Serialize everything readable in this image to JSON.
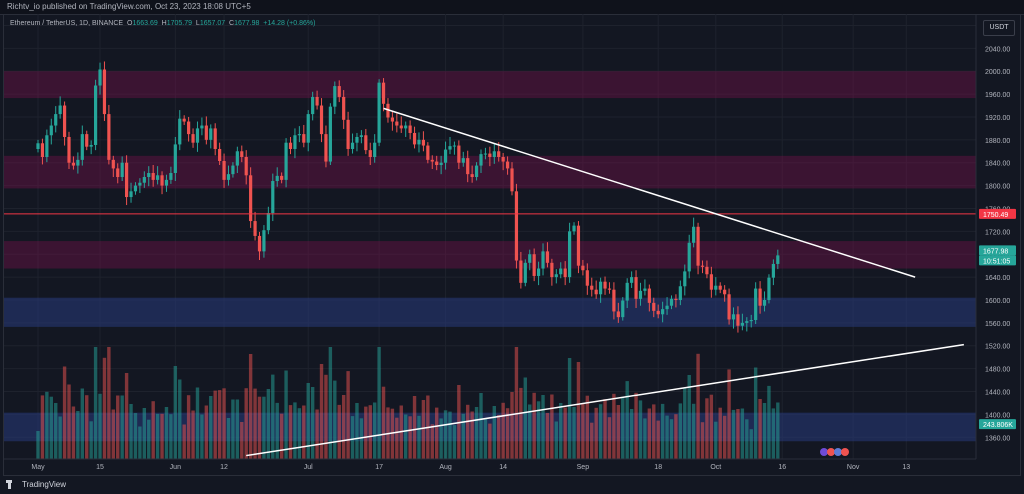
{
  "header": {
    "publisher_line": "Richtv_io published on TradingView.com, Oct 23, 2023 18:08 UTC+5"
  },
  "legend": {
    "symbol": "Ethereum / TetherUS, 1D, BINANCE",
    "o_label": "O",
    "o": "1663.69",
    "h_label": "H",
    "h": "1705.79",
    "l_label": "L",
    "l": "1657.07",
    "c_label": "C",
    "c": "1677.98",
    "change": "+14.28 (+0.86%)"
  },
  "currency": "USDT",
  "footer": {
    "brand": "TradingView"
  },
  "price_tags": {
    "horizontal_level": "1750.49",
    "last_price": "1677.98",
    "countdown": "10:51:05",
    "volume": "243.806K"
  },
  "chart_data": {
    "type": "candlestick",
    "ylim": [
      1322,
      2100
    ],
    "y_ticks": [
      2080,
      2040,
      2000,
      1960,
      1920,
      1880,
      1840,
      1800,
      1760,
      1720,
      1680,
      1640,
      1600,
      1560,
      1520,
      1480,
      1440,
      1400,
      1360
    ],
    "x_ticks": [
      {
        "label": "May",
        "day": 0
      },
      {
        "label": "15",
        "day": 14
      },
      {
        "label": "Jun",
        "day": 31
      },
      {
        "label": "12",
        "day": 42
      },
      {
        "label": "Jul",
        "day": 61
      },
      {
        "label": "17",
        "day": 77
      },
      {
        "label": "Aug",
        "day": 92
      },
      {
        "label": "14",
        "day": 105
      },
      {
        "label": "Sep",
        "day": 123
      },
      {
        "label": "18",
        "day": 140
      },
      {
        "label": "Oct",
        "day": 153
      },
      {
        "label": "16",
        "day": 168
      },
      {
        "label": "Nov",
        "day": 184
      },
      {
        "label": "13",
        "day": 196
      }
    ],
    "zones": [
      {
        "from": 1953,
        "to": 2000,
        "kind": "resistance"
      },
      {
        "from": 1795,
        "to": 1852,
        "kind": "resistance"
      },
      {
        "from": 1655,
        "to": 1703,
        "kind": "resistance"
      },
      {
        "from": 1553,
        "to": 1604,
        "kind": "support"
      },
      {
        "from": 1353,
        "to": 1403,
        "kind": "support"
      }
    ],
    "horizontal_line": 1750.49,
    "trendlines": [
      {
        "start": {
          "day": 78,
          "price": 1935
        },
        "end": {
          "day": 198,
          "price": 1640
        }
      },
      {
        "start": {
          "day": 47,
          "price": 1328
        },
        "end": {
          "day": 209,
          "price": 1522
        }
      }
    ],
    "closes": [
      1874,
      1850,
      1888,
      1905,
      1925,
      1940,
      1885,
      1840,
      1835,
      1845,
      1890,
      1868,
      1871,
      1975,
      2003,
      1925,
      1845,
      1830,
      1815,
      1840,
      1780,
      1790,
      1800,
      1805,
      1815,
      1822,
      1810,
      1818,
      1800,
      1810,
      1822,
      1872,
      1917,
      1912,
      1890,
      1875,
      1900,
      1905,
      1880,
      1900,
      1864,
      1843,
      1810,
      1820,
      1835,
      1860,
      1850,
      1818,
      1738,
      1712,
      1685,
      1722,
      1752,
      1808,
      1817,
      1810,
      1875,
      1864,
      1888,
      1890,
      1875,
      1925,
      1955,
      1940,
      1890,
      1842,
      1938,
      1974,
      1955,
      1915,
      1864,
      1875,
      1885,
      1888,
      1862,
      1850,
      1875,
      1980,
      1943,
      1919,
      1912,
      1905,
      1900,
      1905,
      1892,
      1872,
      1880,
      1870,
      1845,
      1842,
      1836,
      1840,
      1863,
      1869,
      1870,
      1840,
      1848,
      1820,
      1815,
      1835,
      1855,
      1856,
      1850,
      1860,
      1850,
      1842,
      1830,
      1790,
      1669,
      1630,
      1665,
      1680,
      1642,
      1655,
      1685,
      1665,
      1640,
      1645,
      1655,
      1640,
      1720,
      1730,
      1660,
      1652,
      1625,
      1618,
      1610,
      1632,
      1620,
      1618,
      1580,
      1570,
      1599,
      1630,
      1640,
      1602,
      1616,
      1620,
      1595,
      1581,
      1575,
      1584,
      1590,
      1602,
      1600,
      1624,
      1650,
      1700,
      1728,
      1660,
      1658,
      1645,
      1618,
      1625,
      1618,
      1610,
      1566,
      1575,
      1555,
      1560,
      1563,
      1565,
      1620,
      1590,
      1600,
      1639,
      1663,
      1678
    ],
    "volume_range_K": [
      0,
      1200
    ]
  }
}
